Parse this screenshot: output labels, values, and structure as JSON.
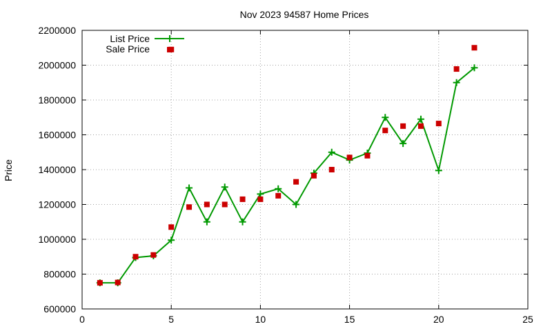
{
  "chart_data": {
    "type": "line",
    "title": "Nov 2023 94587 Home Prices",
    "xlabel": "",
    "ylabel": "Price",
    "xlim": [
      0,
      25
    ],
    "ylim": [
      600000,
      2200000
    ],
    "xticks": [
      0,
      5,
      10,
      15,
      20,
      25
    ],
    "yticks": [
      600000,
      800000,
      1000000,
      1200000,
      1400000,
      1600000,
      1800000,
      2000000,
      2200000
    ],
    "xtick_labels": [
      "0",
      "5",
      "10",
      "15",
      "20",
      "25"
    ],
    "ytick_labels": [
      "600000",
      "800000",
      "1000000",
      "1200000",
      "1400000",
      "1600000",
      "1800000",
      "2000000",
      "2200000"
    ],
    "grid": true,
    "legend": "top-left",
    "series": [
      {
        "name": "List Price",
        "style": "line+plus",
        "color": "#009900",
        "x": [
          1,
          2,
          3,
          4,
          5,
          6,
          7,
          8,
          9,
          10,
          11,
          12,
          13,
          14,
          15,
          16,
          17,
          18,
          19,
          20,
          21,
          22
        ],
        "y": [
          750000,
          750000,
          895000,
          905000,
          995000,
          1295000,
          1100000,
          1300000,
          1100000,
          1260000,
          1290000,
          1200000,
          1380000,
          1500000,
          1455000,
          1495000,
          1700000,
          1550000,
          1690000,
          1395000,
          1900000,
          1985000
        ]
      },
      {
        "name": "Sale Price",
        "style": "square",
        "color": "#cc0000",
        "x": [
          1,
          2,
          3,
          4,
          5,
          5,
          6,
          7,
          8,
          9,
          10,
          11,
          12,
          13,
          14,
          15,
          16,
          17,
          18,
          19,
          20,
          21,
          22
        ],
        "y": [
          750000,
          752000,
          900000,
          910000,
          1070000,
          2090000,
          1185000,
          1200000,
          1200000,
          1230000,
          1230000,
          1250000,
          1330000,
          1365000,
          1400000,
          1470000,
          1480000,
          1625000,
          1650000,
          1650000,
          1665000,
          1978000,
          2100000
        ]
      }
    ]
  }
}
